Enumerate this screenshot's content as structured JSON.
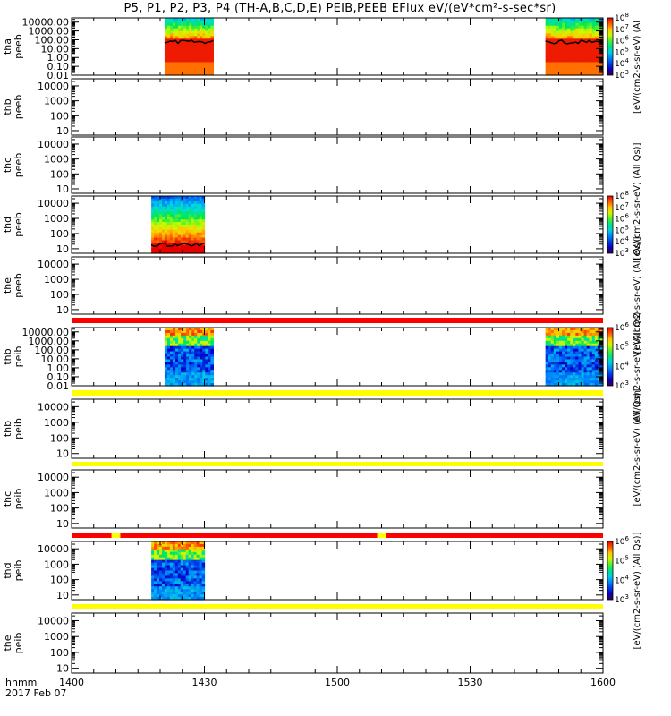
{
  "title": "P5, P1, P2, P3, P4 (TH-A,B,C,D,E) PEIB,PEEB EFlux eV/(eV*cm²-s-sec*sr)",
  "x_axis": {
    "label_top": "hhmm",
    "label_bottom": "2017 Feb 07",
    "ticks": [
      "1400",
      "1430",
      "1500",
      "1530",
      "1600"
    ],
    "tick_minutes": [
      0,
      30,
      60,
      90,
      120
    ]
  },
  "colorbar_labels": {
    "peeb_ad": "[eV/(cm2-s-sr-eV) (All Qs)]",
    "peeb_e": "[eV/(cm2-s-sr-eV) (All Qs)]",
    "peib_a": "eV/(cm2-s-sr-eV) (All Qs)",
    "peib_be": "[eV/(cm2-s-sr-eV) (All Qs)]",
    "peib_d": "[eV/(cm2-s-sr-eV) (All Qs)]",
    "peeb_a_trunc": "[eV/(cm2-s-sr-eV) (Al"
  },
  "chart_data": [
    {
      "type": "heatmap",
      "probe": "tha",
      "name": "tha peeb",
      "ylabel": [
        "tha",
        "peeb"
      ],
      "yticks": [
        "10000.00",
        "1000.00",
        "100.00",
        "10.00",
        "1.00",
        "0.10",
        "0.01"
      ],
      "ylim": [
        0.01,
        30000
      ],
      "ylog": true,
      "data_intervals_min": [
        [
          21,
          32
        ],
        [
          107,
          120
        ]
      ],
      "colorbar_ticks": [
        "10^3",
        "10^4",
        "10^5",
        "10^6",
        "10^7",
        "10^8"
      ]
    },
    {
      "type": "heatmap",
      "probe": "thb",
      "name": "thb peeb",
      "ylabel": [
        "thb",
        "peeb"
      ],
      "yticks": [
        "10000",
        "1000",
        "100",
        "10"
      ],
      "ylim": [
        5,
        30000
      ],
      "ylog": true,
      "data_intervals_min": []
    },
    {
      "type": "heatmap",
      "probe": "thc",
      "name": "thc peeb",
      "ylabel": [
        "thc",
        "peeb"
      ],
      "yticks": [
        "10000",
        "1000",
        "100",
        "10"
      ],
      "ylim": [
        5,
        30000
      ],
      "ylog": true,
      "data_intervals_min": []
    },
    {
      "type": "heatmap",
      "probe": "thd",
      "name": "thd peeb",
      "ylabel": [
        "thd",
        "peeb"
      ],
      "yticks": [
        "10000",
        "1000",
        "100",
        "10"
      ],
      "ylim": [
        5,
        30000
      ],
      "ylog": true,
      "data_intervals_min": [
        [
          18,
          30
        ]
      ],
      "colorbar_ticks": [
        "10^3",
        "10^4",
        "10^5",
        "10^6",
        "10^7",
        "10^8"
      ]
    },
    {
      "type": "heatmap",
      "probe": "the",
      "name": "the peeb",
      "ylabel": [
        "the",
        "peeb"
      ],
      "yticks": [
        "10000",
        "1000",
        "100",
        "10"
      ],
      "ylim": [
        5,
        30000
      ],
      "ylog": true,
      "data_intervals_min": []
    },
    {
      "type": "heatmap",
      "probe": "thb",
      "name": "thb peib",
      "ylabel": [
        "thb",
        "peib"
      ],
      "yticks": [
        "10000.00",
        "1000.00",
        "100.00",
        "10.00",
        "1.00",
        "0.10",
        "0.01"
      ],
      "ylim": [
        0.01,
        30000
      ],
      "ylog": true,
      "data_intervals_min": [
        [
          21,
          32
        ],
        [
          107,
          120
        ]
      ],
      "colorbar_ticks": [
        "10^3",
        "10^4",
        "10^5",
        "10^6"
      ]
    },
    {
      "type": "heatmap",
      "probe": "thb",
      "name": "thb peib",
      "ylabel": [
        "thb",
        "peib"
      ],
      "yticks": [
        "10000",
        "1000",
        "100",
        "10"
      ],
      "ylim": [
        5,
        30000
      ],
      "ylog": true,
      "data_intervals_min": []
    },
    {
      "type": "heatmap",
      "probe": "thc",
      "name": "thc peib",
      "ylabel": [
        "thc",
        "peib"
      ],
      "yticks": [
        "10000",
        "1000",
        "100",
        "10"
      ],
      "ylim": [
        5,
        30000
      ],
      "ylog": true,
      "data_intervals_min": []
    },
    {
      "type": "heatmap",
      "probe": "thd",
      "name": "thd peib",
      "ylabel": [
        "thd",
        "peib"
      ],
      "yticks": [
        "10000",
        "1000",
        "100",
        "10"
      ],
      "ylim": [
        5,
        30000
      ],
      "ylog": true,
      "data_intervals_min": [
        [
          18,
          30
        ]
      ],
      "colorbar_ticks": [
        "10^3",
        "10^4",
        "10^5",
        "10^6"
      ]
    },
    {
      "type": "heatmap",
      "probe": "the",
      "name": "the peib",
      "ylabel": [
        "the",
        "peib"
      ],
      "yticks": [
        "10000",
        "1000",
        "100",
        "10"
      ],
      "ylim": [
        5,
        30000
      ],
      "ylog": true,
      "data_intervals_min": []
    }
  ],
  "status_bars": [
    {
      "after_panel": 4,
      "color": "#ff0000",
      "markers_min": []
    },
    {
      "after_panel": 5,
      "color": "#ffff00",
      "markers_min": []
    },
    {
      "after_panel": 6,
      "color": "#ffff00",
      "markers_min": []
    },
    {
      "after_panel": 7,
      "color": "#ff0000",
      "markers_min": [
        [
          9,
          11
        ],
        [
          69,
          71
        ]
      ]
    },
    {
      "after_panel": 8,
      "color": "#ffff00",
      "markers_min": []
    }
  ],
  "colors": {
    "red": "#ff0000",
    "yellow": "#ffff00",
    "marker": "#ffff00"
  }
}
